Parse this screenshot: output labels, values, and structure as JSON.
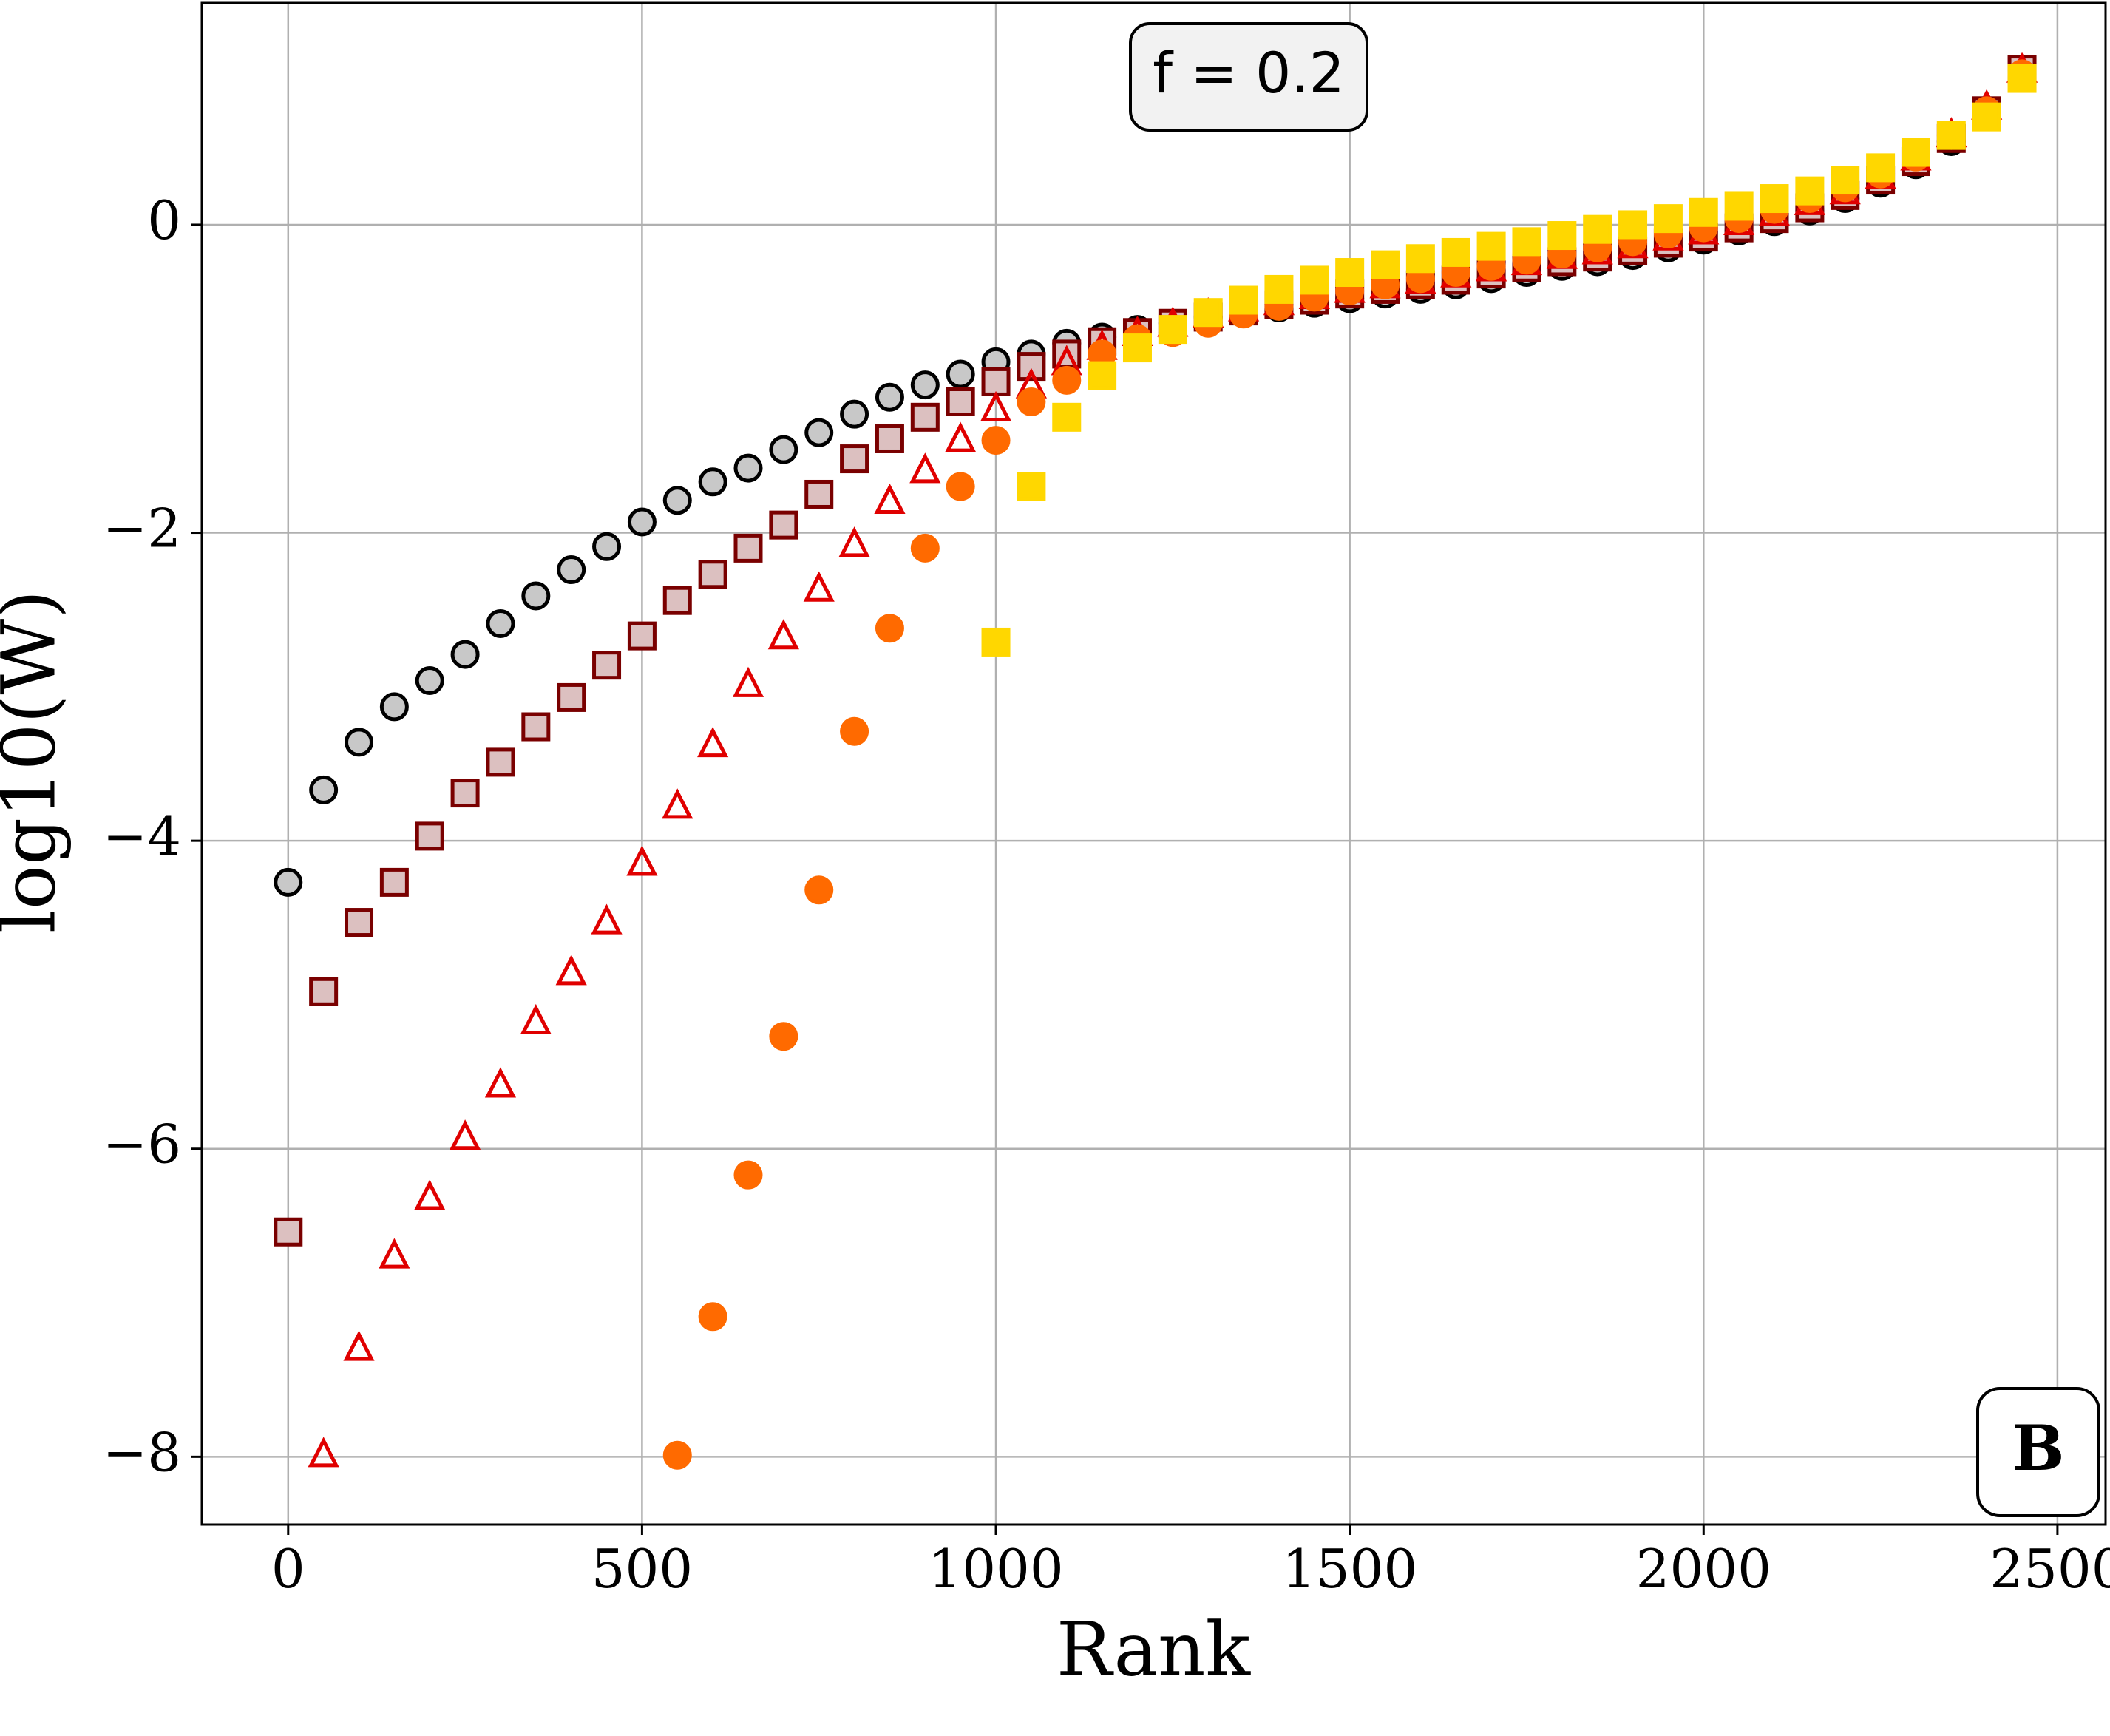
{
  "chart_data": {
    "type": "scatter",
    "xlabel": "Rank",
    "ylabel": "log10(W)",
    "annotations": [
      "f = 0.2",
      "B"
    ],
    "xlim": [
      -122,
      2568
    ],
    "ylim": [
      -8.44,
      1.44
    ],
    "xticks": [
      0,
      500,
      1000,
      1500,
      2000,
      2500
    ],
    "yticks": [
      {
        "value": -8,
        "label": "−8"
      },
      {
        "value": -6,
        "label": "−6"
      },
      {
        "value": -4,
        "label": "−4"
      },
      {
        "value": -2,
        "label": "−2"
      },
      0
    ],
    "grid": true,
    "x": [
      0,
      50,
      100,
      150,
      200,
      250,
      300,
      350,
      400,
      450,
      500,
      550,
      600,
      650,
      700,
      750,
      800,
      850,
      900,
      950,
      1000,
      1050,
      1100,
      1150,
      1200,
      1250,
      1300,
      1350,
      1400,
      1450,
      1500,
      1550,
      1600,
      1650,
      1700,
      1750,
      1800,
      1850,
      1900,
      1950,
      2000,
      2050,
      2100,
      2150,
      2200,
      2250,
      2300,
      2350,
      2400,
      2450
    ],
    "series": [
      {
        "marker": "circle",
        "color": "#c8c8c8",
        "edgecolor": "#000000",
        "values": [
          -4.27,
          -3.67,
          -3.36,
          -3.13,
          -2.96,
          -2.79,
          -2.59,
          -2.41,
          -2.24,
          -2.09,
          -1.93,
          -1.79,
          -1.67,
          -1.58,
          -1.46,
          -1.35,
          -1.23,
          -1.12,
          -1.04,
          -0.97,
          -0.89,
          -0.84,
          -0.77,
          -0.73,
          -0.68,
          -0.64,
          -0.6,
          -0.57,
          -0.54,
          -0.51,
          -0.48,
          -0.45,
          -0.42,
          -0.39,
          -0.35,
          -0.31,
          -0.27,
          -0.24,
          -0.2,
          -0.15,
          -0.1,
          -0.04,
          0.02,
          0.09,
          0.17,
          0.27,
          0.39,
          0.54,
          0.72,
          0.99
        ]
      },
      {
        "marker": "square",
        "color": "#dcc0c0",
        "edgecolor": "#7a0000",
        "values": [
          -6.54,
          -4.98,
          -4.53,
          -4.27,
          -3.97,
          -3.69,
          -3.49,
          -3.26,
          -3.07,
          -2.86,
          -2.67,
          -2.44,
          -2.27,
          -2.1,
          -1.95,
          -1.75,
          -1.52,
          -1.39,
          -1.25,
          -1.15,
          -1.02,
          -0.92,
          -0.84,
          -0.76,
          -0.7,
          -0.64,
          -0.6,
          -0.56,
          -0.52,
          -0.49,
          -0.45,
          -0.42,
          -0.39,
          -0.36,
          -0.32,
          -0.28,
          -0.24,
          -0.21,
          -0.17,
          -0.12,
          -0.08,
          -0.02,
          0.04,
          0.11,
          0.19,
          0.29,
          0.41,
          0.56,
          0.74,
          1.01
        ]
      },
      {
        "marker": "triangle",
        "color": "none",
        "edgecolor": "#e00000",
        "values": [
          null,
          -7.99,
          -7.3,
          -6.7,
          -6.32,
          -5.93,
          -5.59,
          -5.18,
          -4.86,
          -4.53,
          -4.15,
          -3.78,
          -3.38,
          -2.99,
          -2.68,
          -2.37,
          -2.08,
          -1.8,
          -1.6,
          -1.4,
          -1.2,
          -1.05,
          -0.9,
          -0.8,
          -0.71,
          -0.65,
          -0.59,
          -0.55,
          -0.51,
          -0.47,
          -0.43,
          -0.4,
          -0.37,
          -0.33,
          -0.29,
          -0.25,
          -0.21,
          -0.18,
          -0.14,
          -0.09,
          -0.05,
          0.01,
          0.07,
          0.14,
          0.21,
          0.31,
          0.43,
          0.58,
          0.76,
          1.0
        ]
      },
      {
        "marker": "circle",
        "color": "#ff6a00",
        "edgecolor": "#ff6a00",
        "values": [
          null,
          null,
          null,
          null,
          null,
          null,
          null,
          null,
          null,
          null,
          null,
          -7.99,
          -7.09,
          -6.17,
          -5.27,
          -4.32,
          -3.29,
          -2.62,
          -2.1,
          -1.7,
          -1.4,
          -1.15,
          -1.01,
          -0.84,
          -0.74,
          -0.7,
          -0.64,
          -0.58,
          -0.53,
          -0.47,
          -0.43,
          -0.39,
          -0.35,
          -0.31,
          -0.27,
          -0.23,
          -0.19,
          -0.15,
          -0.11,
          -0.06,
          -0.02,
          0.04,
          0.1,
          0.17,
          0.24,
          0.33,
          0.44,
          0.58,
          0.74,
          0.98
        ]
      },
      {
        "marker": "square",
        "color": "#ffd700",
        "edgecolor": "#ffd700",
        "values": [
          null,
          null,
          null,
          null,
          null,
          null,
          null,
          null,
          null,
          null,
          null,
          null,
          null,
          null,
          null,
          null,
          null,
          null,
          null,
          null,
          -2.71,
          -1.7,
          -1.25,
          -0.98,
          -0.8,
          -0.68,
          -0.57,
          -0.49,
          -0.42,
          -0.36,
          -0.31,
          -0.26,
          -0.22,
          -0.18,
          -0.14,
          -0.11,
          -0.07,
          -0.03,
          0.0,
          0.04,
          0.08,
          0.12,
          0.17,
          0.22,
          0.29,
          0.37,
          0.47,
          0.58,
          0.7,
          0.95
        ]
      }
    ]
  }
}
